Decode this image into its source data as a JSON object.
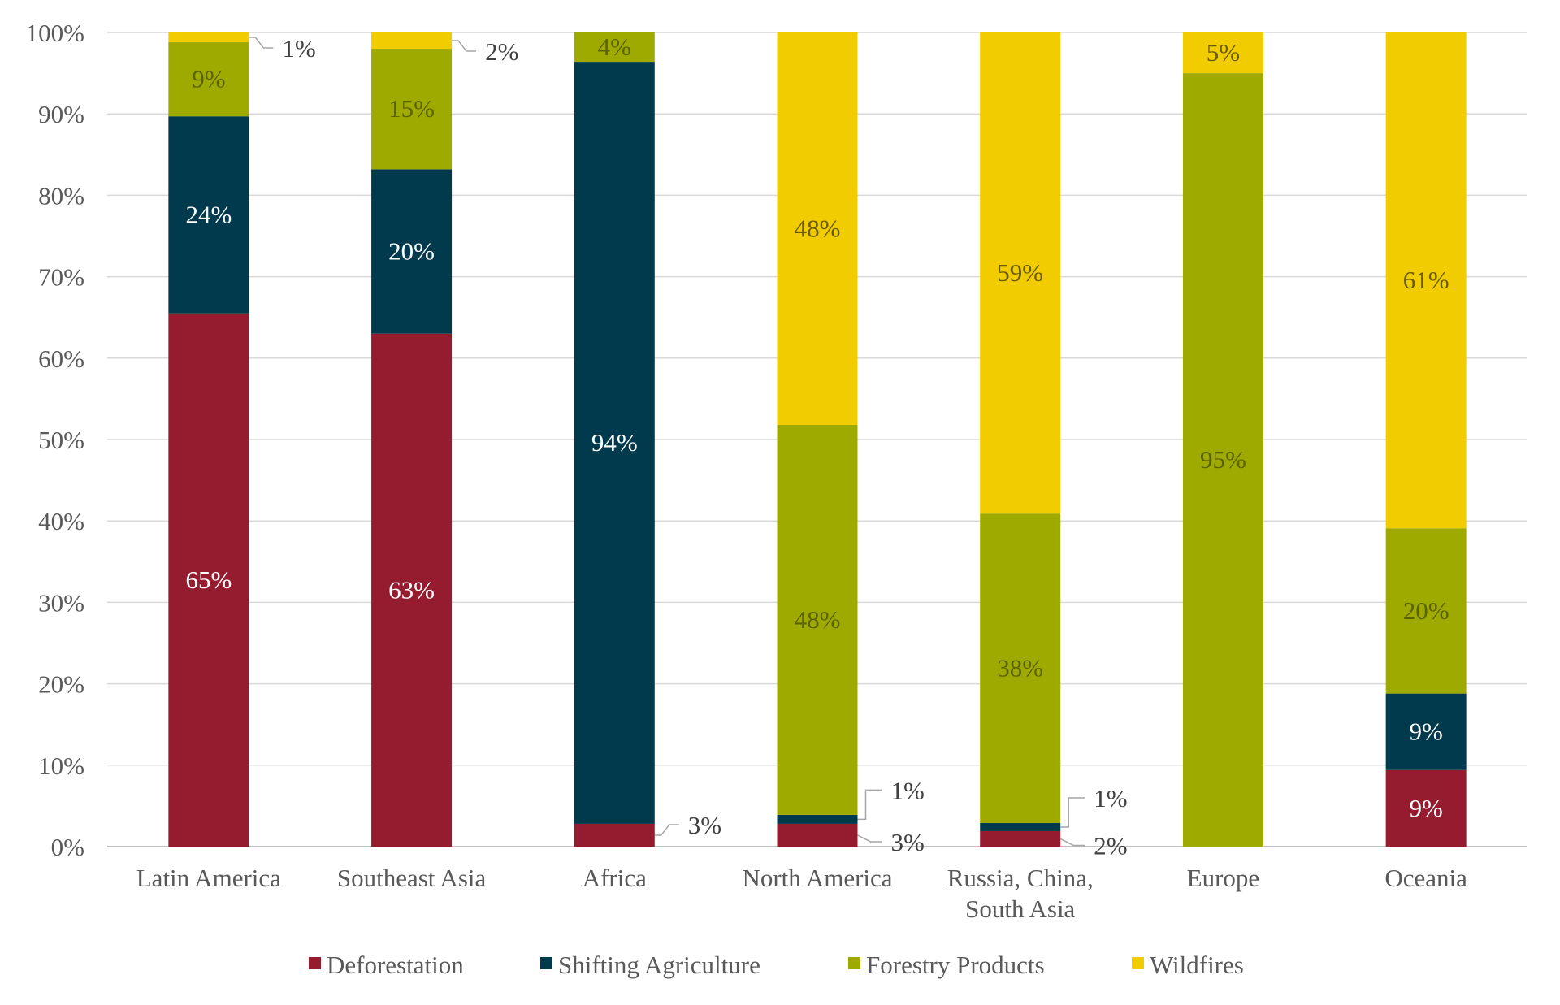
{
  "chart_data": {
    "type": "bar",
    "stacked": true,
    "title": "",
    "xlabel": "",
    "ylabel": "",
    "ylim": [
      0,
      100
    ],
    "y_ticks": [
      "0%",
      "10%",
      "20%",
      "30%",
      "40%",
      "50%",
      "60%",
      "70%",
      "80%",
      "90%",
      "100%"
    ],
    "grid": true,
    "legend_position": "bottom",
    "categories": [
      [
        "Latin America"
      ],
      [
        "Southeast Asia"
      ],
      [
        "Africa"
      ],
      [
        "North America"
      ],
      [
        "Russia, China,",
        "South Asia"
      ],
      [
        "Europe"
      ],
      [
        "Oceania"
      ]
    ],
    "series": [
      {
        "name": "Deforestation",
        "color": "#951b2e",
        "values": [
          65.5,
          63,
          2.8,
          2.8,
          1.9,
          0,
          9.4
        ],
        "labels": [
          "65%",
          "63%",
          "3%",
          "3%",
          "2%",
          "",
          "9%"
        ]
      },
      {
        "name": "Shifting Agriculture",
        "color": "#003a4c",
        "values": [
          24.2,
          20.2,
          93.6,
          1.1,
          1.0,
          0,
          9.4
        ],
        "labels": [
          "24%",
          "20%",
          "94%",
          "1%",
          "1%",
          "",
          "9%"
        ]
      },
      {
        "name": "Forestry Products",
        "color": "#9eaa00",
        "values": [
          9.1,
          14.8,
          3.6,
          47.9,
          38.0,
          95,
          20.3
        ],
        "labels": [
          "9%",
          "15%",
          "4%",
          "48%",
          "38%",
          "95%",
          "20%"
        ]
      },
      {
        "name": "Wildfires",
        "color": "#f1cc00",
        "values": [
          1.2,
          2.0,
          0,
          48.2,
          59.1,
          5,
          60.9
        ],
        "labels": [
          "1%",
          "2%",
          "",
          "48%",
          "59%",
          "5%",
          "61%"
        ]
      }
    ]
  }
}
